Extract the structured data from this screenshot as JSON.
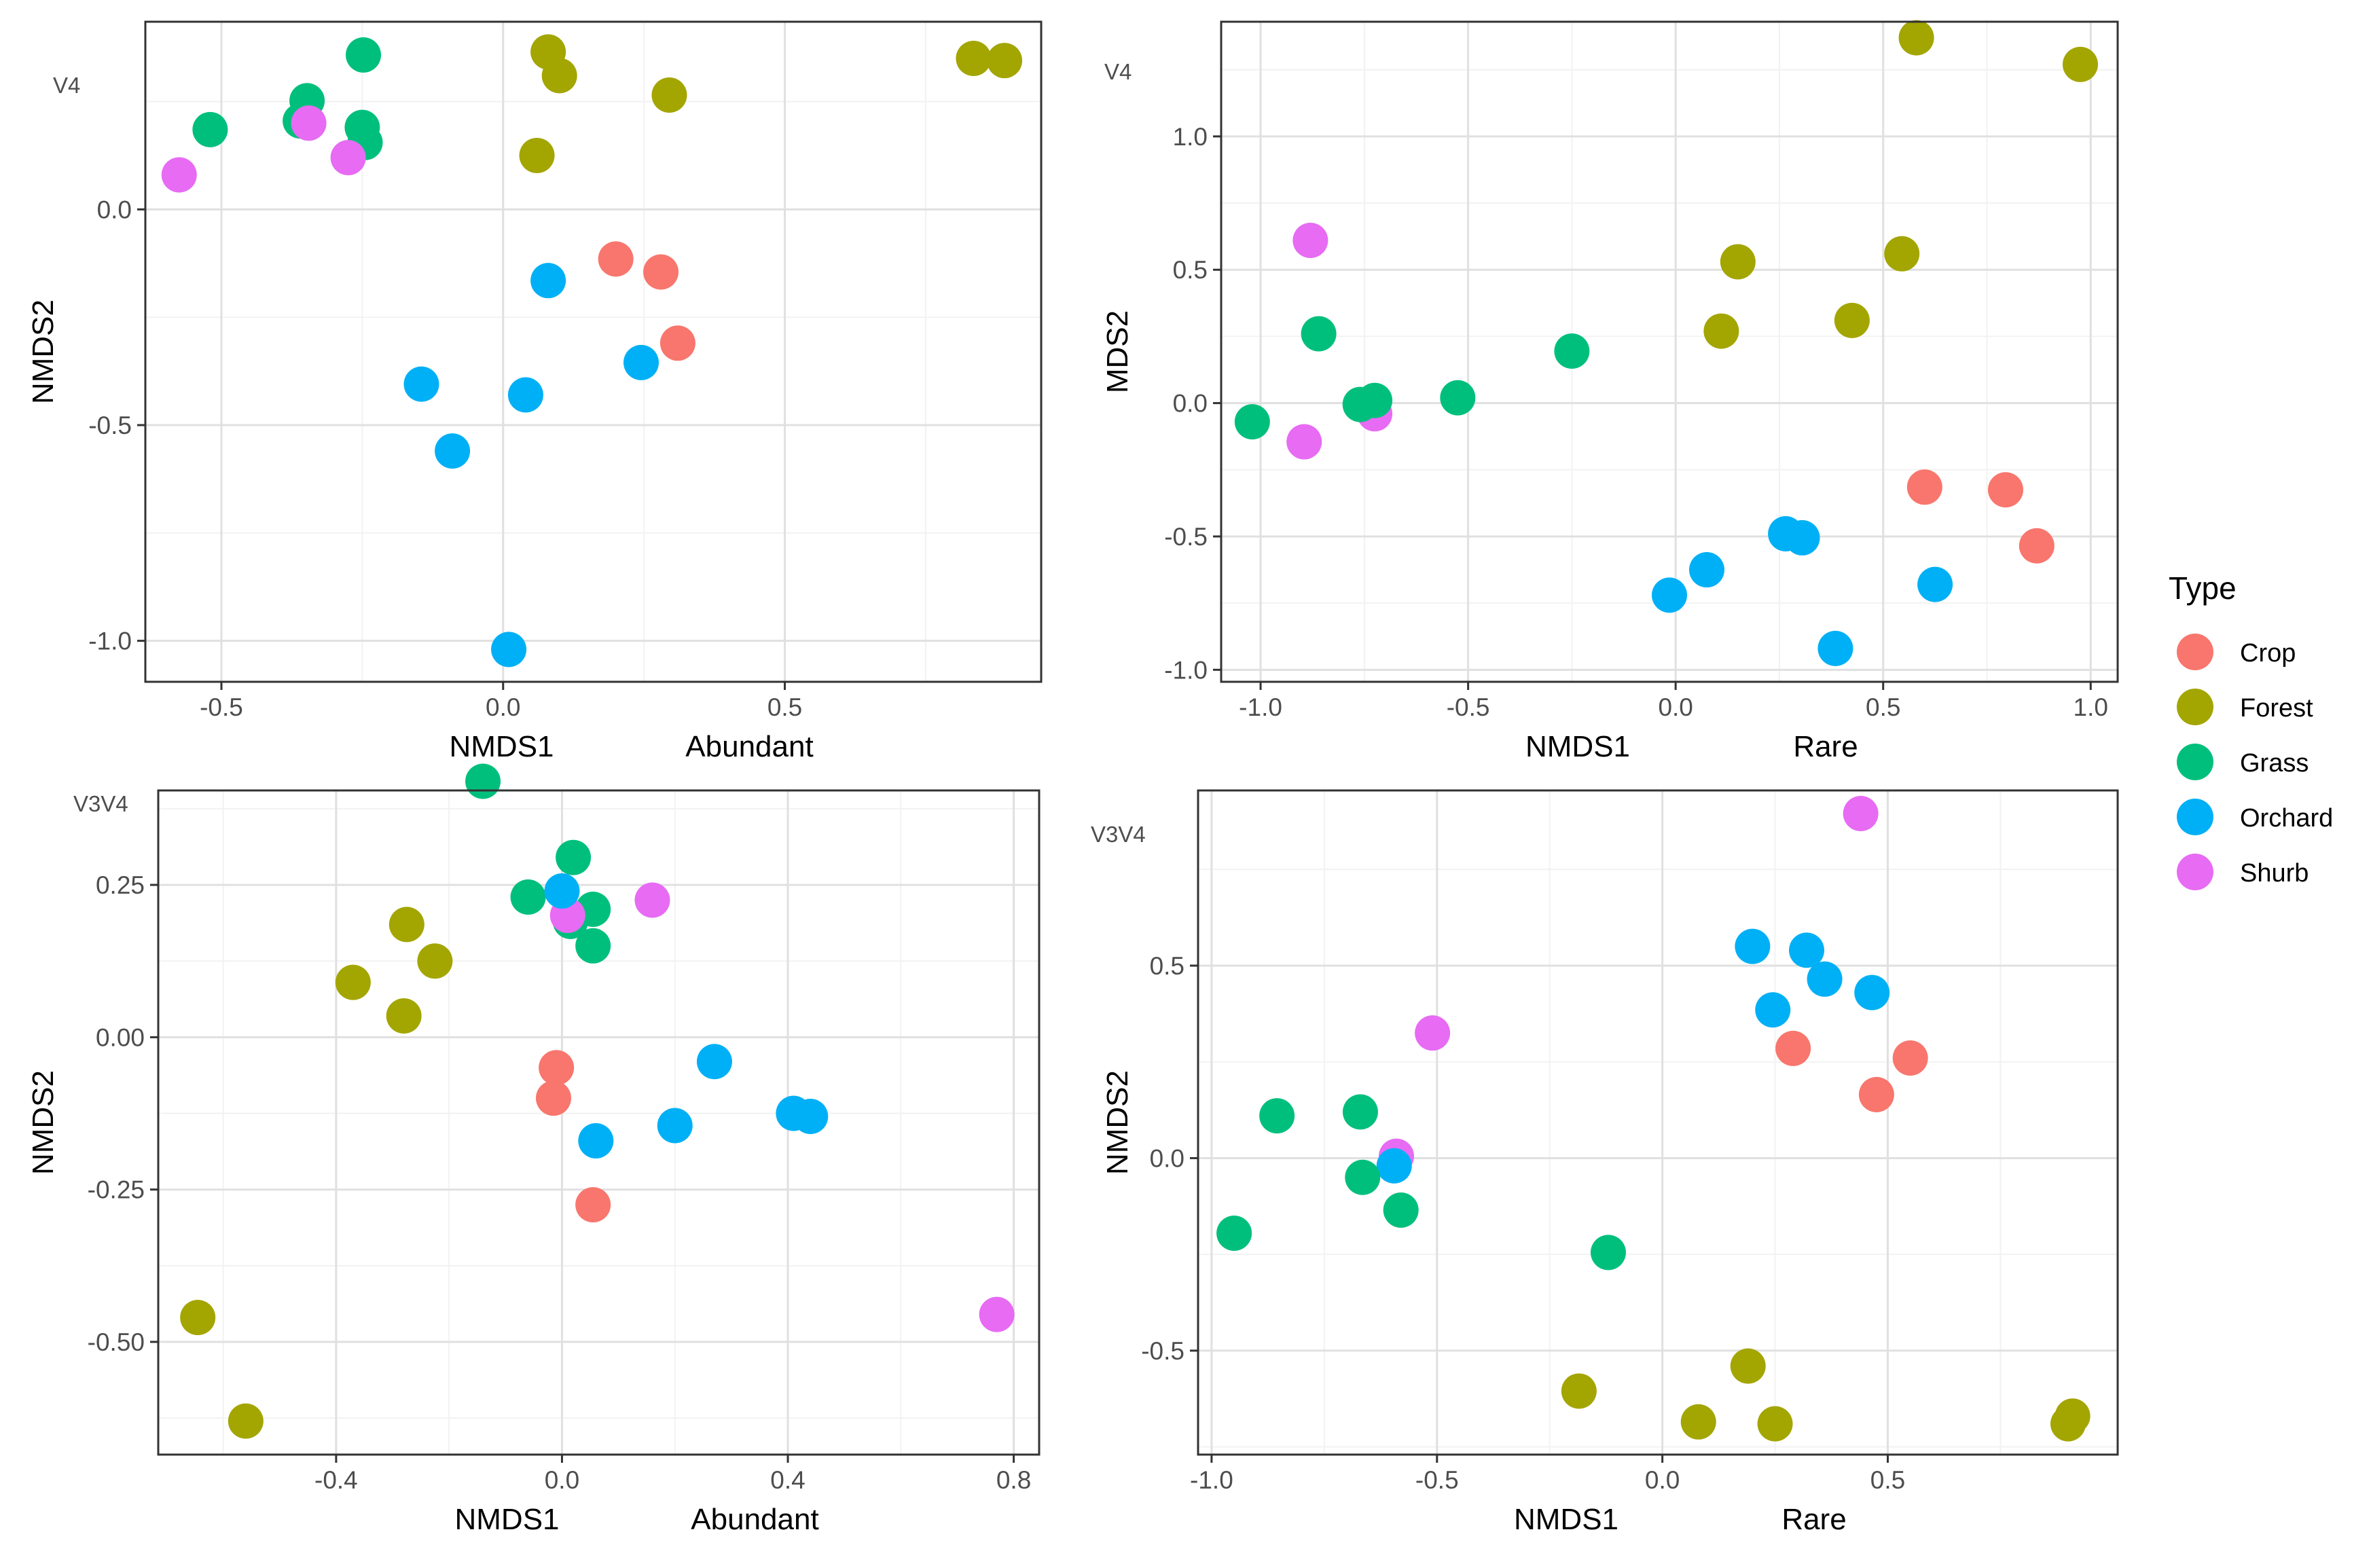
{
  "legend": {
    "title": "Type",
    "items": [
      {
        "label": "Crop",
        "color": "#F8766D"
      },
      {
        "label": "Forest",
        "color": "#A3A500"
      },
      {
        "label": "Grass",
        "color": "#00BF7D"
      },
      {
        "label": "Orchard",
        "color": "#00B0F6"
      },
      {
        "label": "Shurb",
        "color": "#E76BF3"
      }
    ]
  },
  "chart_data": [
    {
      "type": "scatter",
      "region": "V4",
      "subset": "Abundant",
      "xlabel": "NMDS1",
      "ylabel": "NMDS2",
      "xlim": [
        -0.635,
        0.955
      ],
      "ylim": [
        -1.095,
        0.435
      ],
      "xticks": [
        {
          "v": -0.5,
          "label": "-0.5"
        },
        {
          "v": 0.0,
          "label": "0.0"
        },
        {
          "v": 0.5,
          "label": "0.5"
        }
      ],
      "yticks": [
        {
          "v": -1.0,
          "label": "-1.0"
        },
        {
          "v": -0.5,
          "label": "-0.5"
        },
        {
          "v": 0.0,
          "label": "0.0"
        }
      ],
      "points": [
        {
          "x": -0.248,
          "y": 0.358,
          "group": "Grass"
        },
        {
          "x": -0.348,
          "y": 0.252,
          "group": "Grass"
        },
        {
          "x": -0.36,
          "y": 0.205,
          "group": "Grass"
        },
        {
          "x": -0.52,
          "y": 0.185,
          "group": "Grass"
        },
        {
          "x": -0.25,
          "y": 0.19,
          "group": "Grass"
        },
        {
          "x": -0.245,
          "y": 0.155,
          "group": "Grass"
        },
        {
          "x": -0.345,
          "y": 0.2,
          "group": "Shurb"
        },
        {
          "x": -0.575,
          "y": 0.08,
          "group": "Shurb"
        },
        {
          "x": -0.275,
          "y": 0.12,
          "group": "Shurb"
        },
        {
          "x": 0.08,
          "y": 0.365,
          "group": "Forest"
        },
        {
          "x": 0.1,
          "y": 0.31,
          "group": "Forest"
        },
        {
          "x": 0.295,
          "y": 0.265,
          "group": "Forest"
        },
        {
          "x": 0.06,
          "y": 0.125,
          "group": "Forest"
        },
        {
          "x": 0.835,
          "y": 0.35,
          "group": "Forest"
        },
        {
          "x": 0.89,
          "y": 0.345,
          "group": "Forest"
        },
        {
          "x": 0.2,
          "y": -0.115,
          "group": "Crop"
        },
        {
          "x": 0.28,
          "y": -0.145,
          "group": "Crop"
        },
        {
          "x": 0.31,
          "y": -0.31,
          "group": "Crop"
        },
        {
          "x": 0.08,
          "y": -0.165,
          "group": "Orchard"
        },
        {
          "x": 0.245,
          "y": -0.355,
          "group": "Orchard"
        },
        {
          "x": 0.04,
          "y": -0.43,
          "group": "Orchard"
        },
        {
          "x": -0.145,
          "y": -0.405,
          "group": "Orchard"
        },
        {
          "x": -0.09,
          "y": -0.56,
          "group": "Orchard"
        },
        {
          "x": 0.01,
          "y": -1.02,
          "group": "Orchard"
        }
      ]
    },
    {
      "type": "scatter",
      "region": "V4",
      "subset": "Rare",
      "xlabel": "NMDS1",
      "ylabel": "MDS2",
      "xlim": [
        -1.095,
        1.065
      ],
      "ylim": [
        -1.045,
        1.43
      ],
      "xticks": [
        {
          "v": -1.0,
          "label": "-1.0"
        },
        {
          "v": -0.5,
          "label": "-0.5"
        },
        {
          "v": 0.0,
          "label": "0.0"
        },
        {
          "v": 0.5,
          "label": "0.5"
        },
        {
          "v": 1.0,
          "label": "1.0"
        }
      ],
      "yticks": [
        {
          "v": -1.0,
          "label": "-1.0"
        },
        {
          "v": -0.5,
          "label": "-0.5"
        },
        {
          "v": 0.0,
          "label": "0.0"
        },
        {
          "v": 0.5,
          "label": "0.5"
        },
        {
          "v": 1.0,
          "label": "1.0"
        }
      ],
      "points": [
        {
          "x": 0.58,
          "y": 1.37,
          "group": "Forest"
        },
        {
          "x": 0.975,
          "y": 1.27,
          "group": "Forest"
        },
        {
          "x": 0.15,
          "y": 0.53,
          "group": "Forest"
        },
        {
          "x": 0.545,
          "y": 0.56,
          "group": "Forest"
        },
        {
          "x": 0.11,
          "y": 0.27,
          "group": "Forest"
        },
        {
          "x": 0.425,
          "y": 0.31,
          "group": "Forest"
        },
        {
          "x": -0.88,
          "y": 0.61,
          "group": "Shurb"
        },
        {
          "x": -0.895,
          "y": -0.145,
          "group": "Shurb"
        },
        {
          "x": -0.725,
          "y": -0.04,
          "group": "Shurb"
        },
        {
          "x": -0.86,
          "y": 0.26,
          "group": "Grass"
        },
        {
          "x": -0.25,
          "y": 0.195,
          "group": "Grass"
        },
        {
          "x": -1.02,
          "y": -0.07,
          "group": "Grass"
        },
        {
          "x": -0.76,
          "y": -0.005,
          "group": "Grass"
        },
        {
          "x": -0.725,
          "y": 0.01,
          "group": "Grass"
        },
        {
          "x": -0.525,
          "y": 0.02,
          "group": "Grass"
        },
        {
          "x": 0.6,
          "y": -0.315,
          "group": "Crop"
        },
        {
          "x": 0.795,
          "y": -0.325,
          "group": "Crop"
        },
        {
          "x": 0.87,
          "y": -0.535,
          "group": "Crop"
        },
        {
          "x": 0.265,
          "y": -0.49,
          "group": "Orchard"
        },
        {
          "x": 0.305,
          "y": -0.505,
          "group": "Orchard"
        },
        {
          "x": 0.075,
          "y": -0.625,
          "group": "Orchard"
        },
        {
          "x": -0.015,
          "y": -0.72,
          "group": "Orchard"
        },
        {
          "x": 0.625,
          "y": -0.68,
          "group": "Orchard"
        },
        {
          "x": 0.385,
          "y": -0.92,
          "group": "Orchard"
        }
      ]
    },
    {
      "type": "scatter",
      "region": "V3V4",
      "subset": "Abundant",
      "xlabel": "NMDS1",
      "ylabel": "NMDS2",
      "xlim": [
        -0.715,
        0.845
      ],
      "ylim": [
        -0.685,
        0.405
      ],
      "xticks": [
        {
          "v": -0.4,
          "label": "-0.4"
        },
        {
          "v": 0.0,
          "label": "0.0"
        },
        {
          "v": 0.4,
          "label": "0.4"
        },
        {
          "v": 0.8,
          "label": "0.8"
        }
      ],
      "yticks": [
        {
          "v": -0.5,
          "label": "-0.50"
        },
        {
          "v": -0.25,
          "label": "-0.25"
        },
        {
          "v": 0.0,
          "label": "0.00"
        },
        {
          "v": 0.25,
          "label": "0.25"
        }
      ],
      "points": [
        {
          "x": -0.14,
          "y": 0.42,
          "group": "Grass"
        },
        {
          "x": 0.02,
          "y": 0.295,
          "group": "Grass"
        },
        {
          "x": -0.06,
          "y": 0.23,
          "group": "Grass"
        },
        {
          "x": 0.055,
          "y": 0.21,
          "group": "Grass"
        },
        {
          "x": 0.015,
          "y": 0.19,
          "group": "Grass"
        },
        {
          "x": 0.055,
          "y": 0.15,
          "group": "Grass"
        },
        {
          "x": 0.01,
          "y": 0.2,
          "group": "Shurb"
        },
        {
          "x": 0.16,
          "y": 0.225,
          "group": "Shurb"
        },
        {
          "x": 0.77,
          "y": -0.455,
          "group": "Shurb"
        },
        {
          "x": -0.275,
          "y": 0.185,
          "group": "Forest"
        },
        {
          "x": -0.225,
          "y": 0.125,
          "group": "Forest"
        },
        {
          "x": -0.37,
          "y": 0.09,
          "group": "Forest"
        },
        {
          "x": -0.28,
          "y": 0.035,
          "group": "Forest"
        },
        {
          "x": -0.645,
          "y": -0.46,
          "group": "Forest"
        },
        {
          "x": -0.56,
          "y": -0.63,
          "group": "Forest"
        },
        {
          "x": -0.01,
          "y": -0.05,
          "group": "Crop"
        },
        {
          "x": -0.015,
          "y": -0.1,
          "group": "Crop"
        },
        {
          "x": 0.055,
          "y": -0.275,
          "group": "Crop"
        },
        {
          "x": 0.0,
          "y": 0.24,
          "group": "Orchard"
        },
        {
          "x": 0.27,
          "y": -0.04,
          "group": "Orchard"
        },
        {
          "x": 0.2,
          "y": -0.145,
          "group": "Orchard"
        },
        {
          "x": 0.06,
          "y": -0.17,
          "group": "Orchard"
        },
        {
          "x": 0.41,
          "y": -0.125,
          "group": "Orchard"
        },
        {
          "x": 0.44,
          "y": -0.13,
          "group": "Orchard"
        }
      ]
    },
    {
      "type": "scatter",
      "region": "V3V4",
      "subset": "Rare",
      "xlabel": "NMDS1",
      "ylabel": "NMDS2",
      "xlim": [
        -1.03,
        1.01
      ],
      "ylim": [
        -0.77,
        0.955
      ],
      "xticks": [
        {
          "v": -1.0,
          "label": "-1.0"
        },
        {
          "v": -0.5,
          "label": "-0.5"
        },
        {
          "v": 0.0,
          "label": "0.0"
        },
        {
          "v": 0.5,
          "label": "0.5"
        }
      ],
      "yticks": [
        {
          "v": -0.5,
          "label": "-0.5"
        },
        {
          "v": 0.0,
          "label": "0.0"
        },
        {
          "v": 0.5,
          "label": "0.5"
        }
      ],
      "points": [
        {
          "x": 0.44,
          "y": 0.895,
          "group": "Shurb"
        },
        {
          "x": -0.51,
          "y": 0.325,
          "group": "Shurb"
        },
        {
          "x": -0.59,
          "y": 0.005,
          "group": "Shurb"
        },
        {
          "x": 0.2,
          "y": 0.55,
          "group": "Orchard"
        },
        {
          "x": 0.32,
          "y": 0.54,
          "group": "Orchard"
        },
        {
          "x": 0.36,
          "y": 0.465,
          "group": "Orchard"
        },
        {
          "x": 0.465,
          "y": 0.43,
          "group": "Orchard"
        },
        {
          "x": 0.245,
          "y": 0.385,
          "group": "Orchard"
        },
        {
          "x": -0.595,
          "y": -0.02,
          "group": "Orchard"
        },
        {
          "x": 0.29,
          "y": 0.285,
          "group": "Crop"
        },
        {
          "x": 0.55,
          "y": 0.26,
          "group": "Crop"
        },
        {
          "x": 0.475,
          "y": 0.165,
          "group": "Crop"
        },
        {
          "x": -0.855,
          "y": 0.11,
          "group": "Grass"
        },
        {
          "x": -0.67,
          "y": 0.12,
          "group": "Grass"
        },
        {
          "x": -0.665,
          "y": -0.05,
          "group": "Grass"
        },
        {
          "x": -0.58,
          "y": -0.135,
          "group": "Grass"
        },
        {
          "x": -0.95,
          "y": -0.195,
          "group": "Grass"
        },
        {
          "x": -0.12,
          "y": -0.245,
          "group": "Grass"
        },
        {
          "x": -0.185,
          "y": -0.605,
          "group": "Forest"
        },
        {
          "x": 0.19,
          "y": -0.54,
          "group": "Forest"
        },
        {
          "x": 0.08,
          "y": -0.685,
          "group": "Forest"
        },
        {
          "x": 0.25,
          "y": -0.69,
          "group": "Forest"
        },
        {
          "x": 0.91,
          "y": -0.67,
          "group": "Forest"
        },
        {
          "x": 0.9,
          "y": -0.69,
          "group": "Forest"
        }
      ]
    }
  ]
}
